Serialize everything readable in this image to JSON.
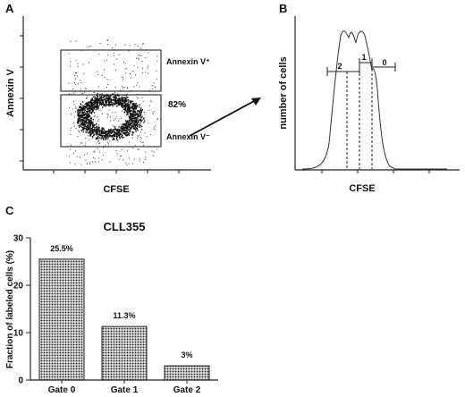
{
  "panels": {
    "A": {
      "letter": "A",
      "xlabel": "CFSE",
      "ylabel": "Annexin V",
      "gate_upper_label": "Annexin V⁺",
      "gate_lower_label": "Annexin V⁻",
      "gate_lower_percent": "82%"
    },
    "B": {
      "letter": "B",
      "xlabel": "CFSE",
      "ylabel": "number of cells",
      "gates": [
        "2",
        "1",
        "0"
      ]
    },
    "C": {
      "letter": "C"
    }
  },
  "chart_data": [
    {
      "type": "scatter",
      "panel": "A",
      "xlabel": "CFSE",
      "ylabel": "Annexin V",
      "gates": [
        {
          "name": "Annexin V⁺",
          "percent": ""
        },
        {
          "name": "Annexin V⁻",
          "percent": "82%"
        }
      ]
    },
    {
      "type": "area",
      "panel": "B",
      "xlabel": "CFSE",
      "ylabel": "number of cells",
      "gates": [
        "2",
        "1",
        "0"
      ]
    },
    {
      "type": "bar",
      "panel": "C",
      "title": "CLL355",
      "ylabel": "Fraction of labeled cells (%)",
      "xlabel": "",
      "categories": [
        "Gate 0",
        "Gate 1",
        "Gate 2"
      ],
      "values": [
        25.5,
        11.3,
        3
      ],
      "value_labels": [
        "25.5%",
        "11.3%",
        "3%"
      ],
      "ylim": [
        0,
        30
      ],
      "yticks": [
        0,
        10,
        20,
        30
      ],
      "grid": false
    }
  ]
}
